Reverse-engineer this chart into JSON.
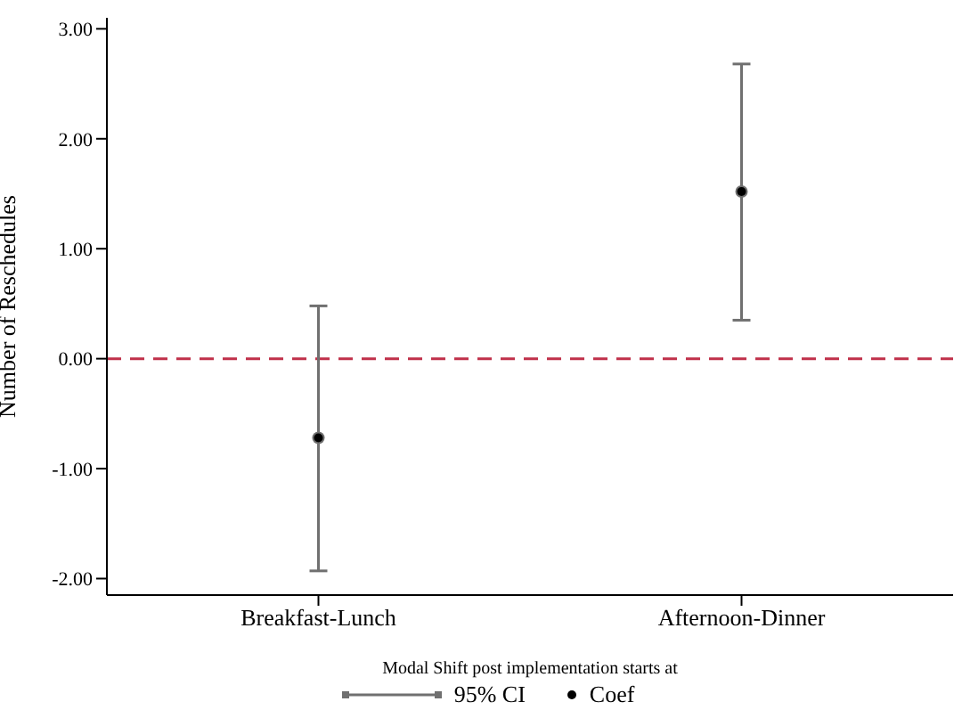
{
  "chart_data": {
    "type": "scatter",
    "xlabel": "Modal Shift post implementation starts at",
    "ylabel": "Number of Reschedules",
    "categories": [
      "Breakfast-Lunch",
      "Afternoon-Dinner"
    ],
    "series": [
      {
        "name": "95% CI",
        "color": "#707070",
        "values": [
          -0.72,
          1.52
        ],
        "errors": [
          [
            -1.93,
            0.48
          ],
          [
            0.35,
            2.68
          ]
        ]
      },
      {
        "name": "Coef",
        "color": "#000000",
        "values": [
          -0.72,
          1.52
        ]
      }
    ],
    "ylim": [
      -2.15,
      3.1
    ],
    "yticks": [
      {
        "value": -2,
        "label": "-2.00"
      },
      {
        "value": -1,
        "label": "-1.00"
      },
      {
        "value": 0,
        "label": "0.00"
      },
      {
        "value": 1,
        "label": "1.00"
      },
      {
        "value": 2,
        "label": "2.00"
      },
      {
        "value": 3,
        "label": "3.00"
      }
    ],
    "ref_lines": [
      {
        "axis": "y",
        "value": 0,
        "color": "#c0304a",
        "line_style": "dashed"
      }
    ],
    "grid": false,
    "legend": "bottom",
    "marker": "circle"
  }
}
